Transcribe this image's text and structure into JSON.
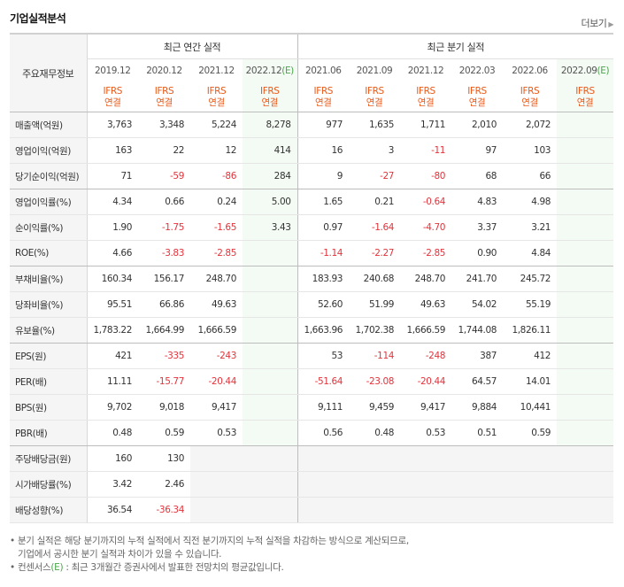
{
  "title": "기업실적분석",
  "more": "더보기",
  "label_header": "주요재무정보",
  "annual_header": "최근 연간 실적",
  "quarter_header": "최근 분기 실적",
  "annual_periods": [
    "2019.12",
    "2020.12",
    "2021.12",
    "2022.12"
  ],
  "quarter_periods": [
    "2021.06",
    "2021.09",
    "2021.12",
    "2022.03",
    "2022.06",
    "2022.09"
  ],
  "estimate_mark": "(E)",
  "ifrs_line1": "IFRS",
  "ifrs_line2": "연결",
  "rows": [
    {
      "label": "매출액(억원)",
      "values": [
        "3,763",
        "3,348",
        "5,224",
        "8,278",
        "977",
        "1,635",
        "1,711",
        "2,010",
        "2,072",
        ""
      ]
    },
    {
      "label": "영업이익(억원)",
      "values": [
        "163",
        "22",
        "12",
        "414",
        "16",
        "3",
        "-11",
        "97",
        "103",
        ""
      ]
    },
    {
      "label": "당기순이익(억원)",
      "values": [
        "71",
        "-59",
        "-86",
        "284",
        "9",
        "-27",
        "-80",
        "68",
        "66",
        ""
      ]
    },
    {
      "label": "영업이익률(%)",
      "values": [
        "4.34",
        "0.66",
        "0.24",
        "5.00",
        "1.65",
        "0.21",
        "-0.64",
        "4.83",
        "4.98",
        ""
      ]
    },
    {
      "label": "순이익률(%)",
      "values": [
        "1.90",
        "-1.75",
        "-1.65",
        "3.43",
        "0.97",
        "-1.64",
        "-4.70",
        "3.37",
        "3.21",
        ""
      ]
    },
    {
      "label": "ROE(%)",
      "values": [
        "4.66",
        "-3.83",
        "-2.85",
        "",
        "-1.14",
        "-2.27",
        "-2.85",
        "0.90",
        "4.84",
        ""
      ]
    },
    {
      "label": "부채비율(%)",
      "values": [
        "160.34",
        "156.17",
        "248.70",
        "",
        "183.93",
        "240.68",
        "248.70",
        "241.70",
        "245.72",
        ""
      ]
    },
    {
      "label": "당좌비율(%)",
      "values": [
        "95.51",
        "66.86",
        "49.63",
        "",
        "52.60",
        "51.99",
        "49.63",
        "54.02",
        "55.19",
        ""
      ]
    },
    {
      "label": "유보율(%)",
      "values": [
        "1,783.22",
        "1,664.99",
        "1,666.59",
        "",
        "1,663.96",
        "1,702.38",
        "1,666.59",
        "1,744.08",
        "1,826.11",
        ""
      ]
    },
    {
      "label": "EPS(원)",
      "values": [
        "421",
        "-335",
        "-243",
        "",
        "53",
        "-114",
        "-248",
        "387",
        "412",
        ""
      ]
    },
    {
      "label": "PER(배)",
      "values": [
        "11.11",
        "-15.77",
        "-20.44",
        "",
        "-51.64",
        "-23.08",
        "-20.44",
        "64.57",
        "14.01",
        ""
      ]
    },
    {
      "label": "BPS(원)",
      "values": [
        "9,702",
        "9,018",
        "9,417",
        "",
        "9,111",
        "9,459",
        "9,417",
        "9,884",
        "10,441",
        ""
      ]
    },
    {
      "label": "PBR(배)",
      "values": [
        "0.48",
        "0.59",
        "0.53",
        "",
        "0.56",
        "0.48",
        "0.53",
        "0.51",
        "0.59",
        ""
      ]
    },
    {
      "label": "주당배당금(원)",
      "values": [
        "160",
        "130",
        "",
        "",
        "",
        "",
        "",
        "",
        "",
        ""
      ]
    },
    {
      "label": "시가배당률(%)",
      "values": [
        "3.42",
        "2.46",
        "",
        "",
        "",
        "",
        "",
        "",
        "",
        ""
      ]
    },
    {
      "label": "배당성향(%)",
      "values": [
        "36.54",
        "-36.34",
        "",
        "",
        "",
        "",
        "",
        "",
        "",
        ""
      ]
    }
  ],
  "notes": [
    "분기 실적은 해당 분기까지의 누적 실적에서 직전 분기까지의 누적 실적을 차감하는 방식으로 계산되므로,",
    "기업에서 공시한 분기 실적과 차이가 있을 수 있습니다.",
    "컨센서스",
    "(E)",
    " : 최근 3개월간 증권사에서 발표한 전망치의 평균값입니다."
  ]
}
